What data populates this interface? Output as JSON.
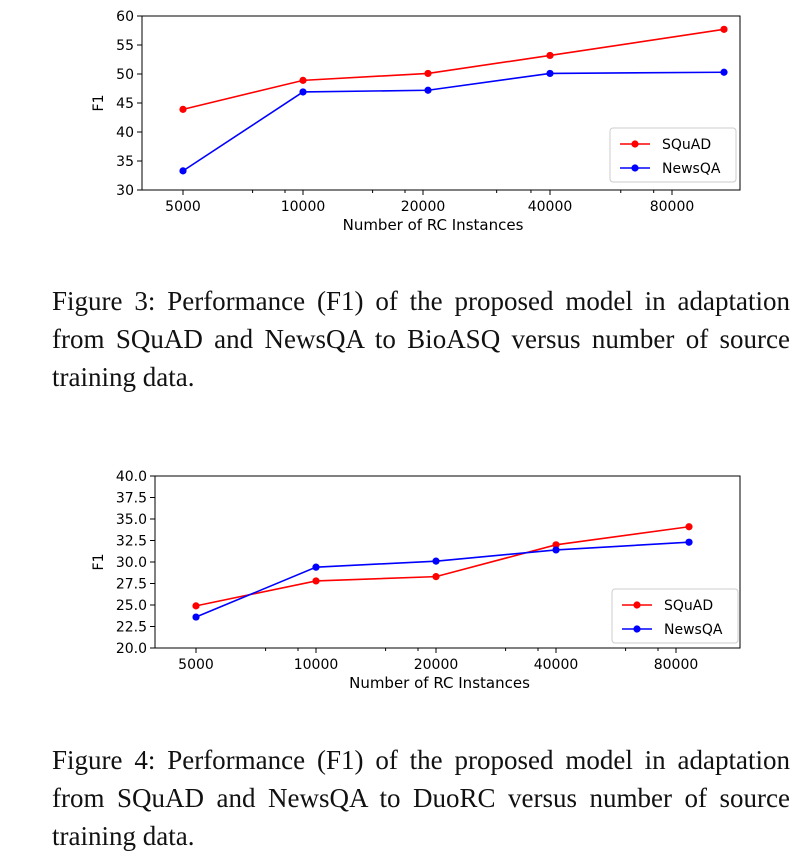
{
  "chart_data": [
    {
      "type": "line",
      "title": "",
      "xlabel": "Number of RC Instances",
      "ylabel": "F1",
      "categories": [
        "5000",
        "10000",
        "20000",
        "40000",
        "80000"
      ],
      "ylim": [
        30,
        60
      ],
      "yticks": [
        "30",
        "35",
        "40",
        "45",
        "50",
        "55",
        "60"
      ],
      "grid": false,
      "legend_position": "lower-right",
      "series": [
        {
          "name": "SQuAD",
          "color": "#ff0000",
          "values": [
            43.9,
            48.9,
            50.1,
            53.2,
            57.7
          ]
        },
        {
          "name": "NewsQA",
          "color": "#0000ff",
          "values": [
            33.3,
            46.9,
            47.2,
            50.1,
            50.3
          ]
        }
      ]
    },
    {
      "type": "line",
      "title": "",
      "xlabel": "Number of RC Instances",
      "ylabel": "F1",
      "categories": [
        "5000",
        "10000",
        "20000",
        "40000",
        "80000"
      ],
      "ylim": [
        20,
        40
      ],
      "yticks": [
        "20.0",
        "22.5",
        "25.0",
        "27.5",
        "30.0",
        "32.5",
        "35.0",
        "37.5",
        "40.0"
      ],
      "grid": false,
      "legend_position": "lower-right",
      "series": [
        {
          "name": "SQuAD",
          "color": "#ff0000",
          "values": [
            24.9,
            27.8,
            28.3,
            32.0,
            34.1
          ]
        },
        {
          "name": "NewsQA",
          "color": "#0000ff",
          "values": [
            23.6,
            29.4,
            30.1,
            31.4,
            32.3
          ]
        }
      ]
    }
  ],
  "captions": [
    "Figure 3: Performance (F1) of the proposed model in adaptation from SQuAD and NewsQA to BioASQ versus number of source training data.",
    "Figure 4: Performance (F1) of the proposed model in adaptation from SQuAD and NewsQA to DuoRC versus number of source training data."
  ]
}
